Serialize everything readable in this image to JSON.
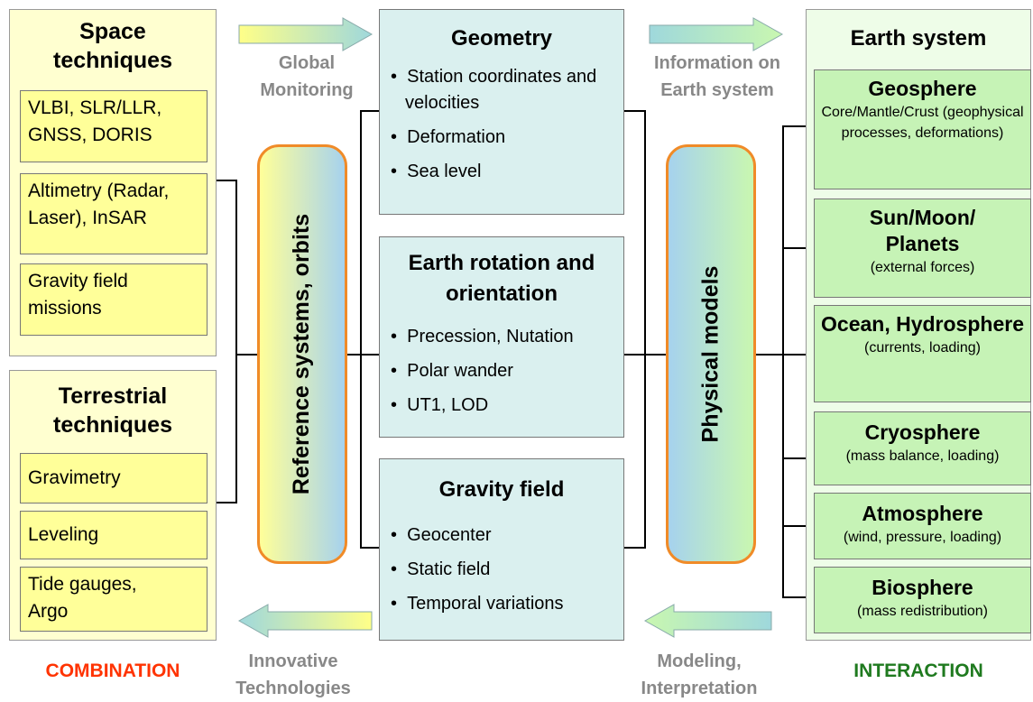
{
  "left": {
    "space": {
      "title": "Space techniques",
      "items": [
        "VLBI, SLR/LLR, GNSS, DORIS",
        "Altimetry (Radar, Laser), InSAR",
        "Gravity field missions"
      ]
    },
    "terrestrial": {
      "title": "Terrestrial techniques",
      "items": [
        "Gravimetry",
        "Leveling",
        "Tide gauges, Argo"
      ]
    },
    "label": "COMBINATION"
  },
  "reference": "Reference systems, orbits",
  "center": [
    {
      "title": "Geometry",
      "bullets": [
        "Station coordinates and velocities",
        "Deformation",
        "Sea level"
      ]
    },
    {
      "title": "Earth rotation and orientation",
      "bullets": [
        "Precession, Nutation",
        "Polar wander",
        "UT1, LOD"
      ]
    },
    {
      "title": "Gravity field",
      "bullets": [
        "Geocenter",
        "Static field",
        "Temporal variations"
      ]
    }
  ],
  "physical": "Physical models",
  "right": {
    "title": "Earth system",
    "items": [
      {
        "name": "Geosphere",
        "detail": "Core/Mantle/Crust (geophysical processes, deformations)"
      },
      {
        "name": "Sun/Moon/ Planets",
        "detail": "(external forces)"
      },
      {
        "name": "Ocean, Hydrosphere",
        "detail": "(currents, loading)"
      },
      {
        "name": "Cryosphere",
        "detail": "(mass balance, loading)"
      },
      {
        "name": "Atmosphere",
        "detail": "(wind, pressure, loading)"
      },
      {
        "name": "Biosphere",
        "detail": "(mass redistribution)"
      }
    ],
    "label": "INTERACTION"
  },
  "arrows": {
    "top_left": "Global Monitoring",
    "top_right": "Information on Earth system",
    "bottom_left": "Innovative Technologies",
    "bottom_right": "Modeling, Interpretation"
  }
}
